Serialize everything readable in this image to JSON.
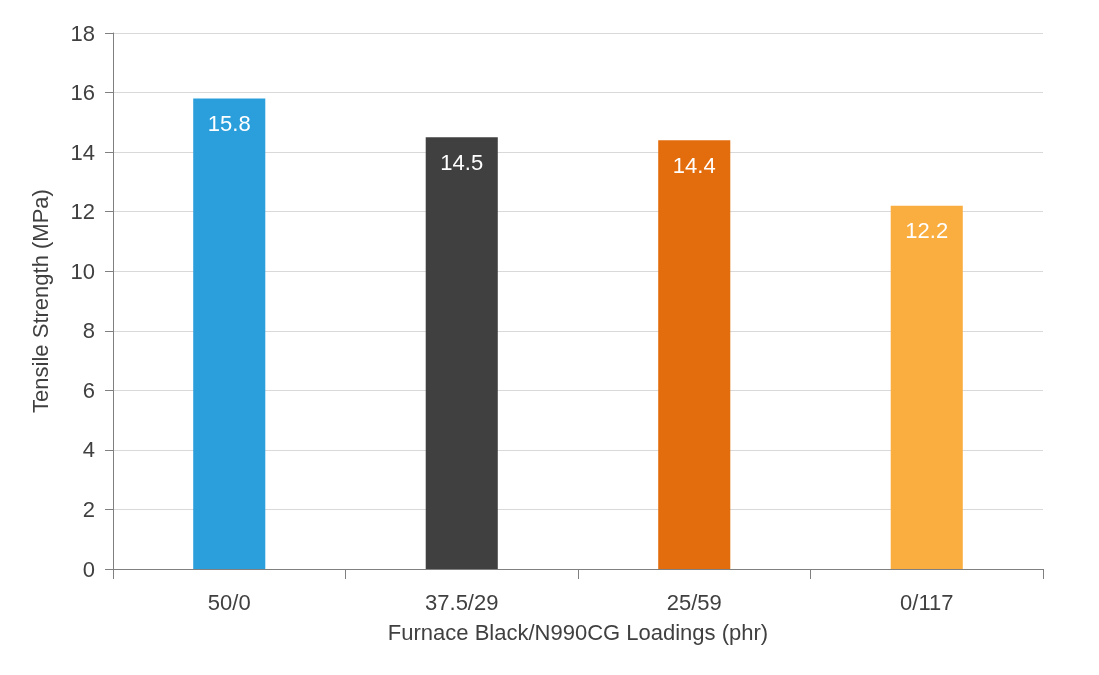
{
  "chart_data": {
    "type": "bar",
    "xlabel": "Furnace Black/N990CG Loadings (phr)",
    "ylabel": "Tensile Strength (MPa)",
    "categories": [
      "50/0",
      "37.5/29",
      "25/59",
      "0/117"
    ],
    "values": [
      15.8,
      14.5,
      14.4,
      12.2
    ],
    "colors": [
      "#2b9fdc",
      "#404040",
      "#e36c0c",
      "#f9ae3f"
    ],
    "ylim": [
      0,
      18
    ],
    "yticks": [
      0,
      2,
      4,
      6,
      8,
      10,
      12,
      14,
      16,
      18
    ],
    "grid": "y",
    "data_labels": true
  }
}
